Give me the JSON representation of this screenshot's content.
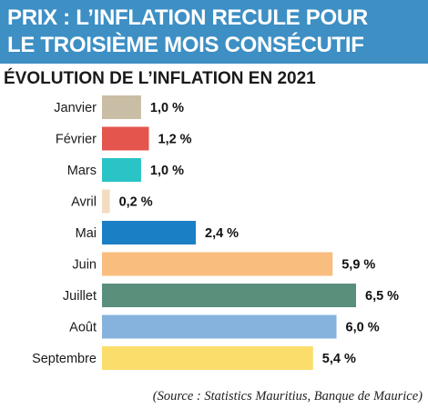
{
  "header": {
    "title_line1": "PRIX : L’INFLATION RECULE POUR",
    "title_line2": "LE TROISIÈME MOIS CONSÉCUTIF"
  },
  "subtitle": "ÉVOLUTION DE L’INFLATION EN 2021",
  "chart_data": {
    "type": "bar",
    "orientation": "horizontal",
    "categories": [
      "Janvier",
      "Février",
      "Mars",
      "Avril",
      "Mai",
      "Juin",
      "Juillet",
      "Août",
      "Septembre"
    ],
    "values": [
      1.0,
      1.2,
      1.0,
      0.2,
      2.4,
      5.9,
      6.5,
      6.0,
      5.4
    ],
    "value_labels": [
      "1,0 %",
      "1,2 %",
      "1,0 %",
      "0,2 %",
      "2,4 %",
      "5,9 %",
      "6,5 %",
      "6,0 %",
      "5,4 %"
    ],
    "colors": [
      "#c9bda5",
      "#e4554d",
      "#2ac3c6",
      "#f3dcc0",
      "#1a7fc4",
      "#f9bd7e",
      "#5a8f7c",
      "#86b3de",
      "#fbdd6c"
    ],
    "xlim": [
      0,
      6.5
    ],
    "grid": false,
    "legend": "none"
  },
  "source": "(Source : Statistics Mauritius, Banque de Maurice)"
}
